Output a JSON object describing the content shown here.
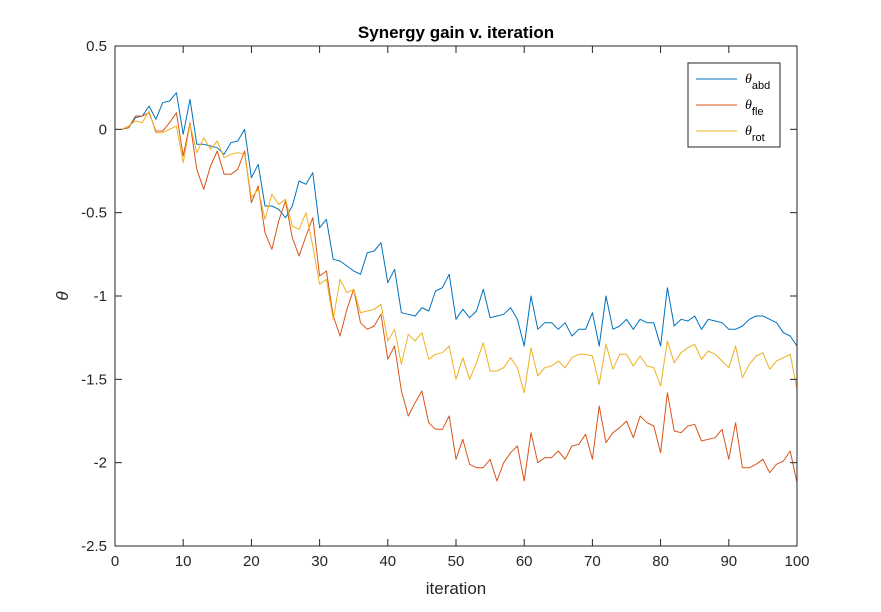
{
  "chart_data": {
    "type": "line",
    "title": "Synergy gain v. iteration",
    "xlabel": "iteration",
    "ylabel": "θ",
    "xlim": [
      0,
      100
    ],
    "ylim": [
      -2.5,
      0.5
    ],
    "xticks": [
      0,
      10,
      20,
      30,
      40,
      50,
      60,
      70,
      80,
      90,
      100
    ],
    "xtick_labels": [
      "0",
      "10",
      "20",
      "30",
      "40",
      "50",
      "60",
      "70",
      "80",
      "90",
      "100"
    ],
    "yticks": [
      0.5,
      0,
      -0.5,
      -1,
      -1.5,
      -2,
      -2.5
    ],
    "ytick_labels": [
      "0.5",
      "0",
      "-0.5",
      "-1",
      "-1.5",
      "-2",
      "-2.5"
    ],
    "grid": false,
    "legend_position": "top-right",
    "series": [
      {
        "name": "abd",
        "legend_base": "θ",
        "legend_sub": "abd",
        "color": "#0072BD",
        "x": [
          1,
          2,
          3,
          4,
          5,
          6,
          7,
          8,
          9,
          10,
          11,
          12,
          13,
          14,
          15,
          16,
          17,
          18,
          19,
          20,
          21,
          22,
          23,
          24,
          25,
          26,
          27,
          28,
          29,
          30,
          31,
          32,
          33,
          34,
          35,
          36,
          37,
          38,
          39,
          40,
          41,
          42,
          43,
          44,
          45,
          46,
          47,
          48,
          49,
          50,
          51,
          52,
          53,
          54,
          55,
          56,
          57,
          58,
          59,
          60,
          61,
          62,
          63,
          64,
          65,
          66,
          67,
          68,
          69,
          70,
          71,
          72,
          73,
          74,
          75,
          76,
          77,
          78,
          79,
          80,
          81,
          82,
          83,
          84,
          85,
          86,
          87,
          88,
          89,
          90,
          91,
          92,
          93,
          94,
          95,
          96,
          97,
          98,
          99,
          100
        ],
        "y": [
          0,
          0.01,
          0.07,
          0.08,
          0.14,
          0.06,
          0.16,
          0.17,
          0.22,
          -0.03,
          0.18,
          -0.09,
          -0.09,
          -0.1,
          -0.11,
          -0.15,
          -0.08,
          -0.07,
          0.0,
          -0.29,
          -0.21,
          -0.46,
          -0.46,
          -0.48,
          -0.53,
          -0.46,
          -0.31,
          -0.33,
          -0.26,
          -0.59,
          -0.54,
          -0.78,
          -0.79,
          -0.82,
          -0.85,
          -0.87,
          -0.74,
          -0.73,
          -0.68,
          -0.92,
          -0.84,
          -1.1,
          -1.11,
          -1.12,
          -1.07,
          -1.09,
          -0.97,
          -0.95,
          -0.87,
          -1.14,
          -1.08,
          -1.13,
          -1.09,
          -0.96,
          -1.13,
          -1.12,
          -1.11,
          -1.07,
          -1.14,
          -1.3,
          -1.0,
          -1.2,
          -1.16,
          -1.16,
          -1.2,
          -1.16,
          -1.24,
          -1.2,
          -1.2,
          -1.1,
          -1.3,
          -1.0,
          -1.2,
          -1.18,
          -1.14,
          -1.2,
          -1.14,
          -1.16,
          -1.16,
          -1.3,
          -0.95,
          -1.18,
          -1.14,
          -1.15,
          -1.12,
          -1.2,
          -1.14,
          -1.15,
          -1.16,
          -1.2,
          -1.2,
          -1.18,
          -1.14,
          -1.12,
          -1.12,
          -1.14,
          -1.16,
          -1.22,
          -1.24,
          -1.3
        ]
      },
      {
        "name": "fle",
        "legend_base": "θ",
        "legend_sub": "fle",
        "color": "#D95319",
        "x": [
          1,
          2,
          3,
          4,
          5,
          6,
          7,
          8,
          9,
          10,
          11,
          12,
          13,
          14,
          15,
          16,
          17,
          18,
          19,
          20,
          21,
          22,
          23,
          24,
          25,
          26,
          27,
          28,
          29,
          30,
          31,
          32,
          33,
          34,
          35,
          36,
          37,
          38,
          39,
          40,
          41,
          42,
          43,
          44,
          45,
          46,
          47,
          48,
          49,
          50,
          51,
          52,
          53,
          54,
          55,
          56,
          57,
          58,
          59,
          60,
          61,
          62,
          63,
          64,
          65,
          66,
          67,
          68,
          69,
          70,
          71,
          72,
          73,
          74,
          75,
          76,
          77,
          78,
          79,
          80,
          81,
          82,
          83,
          84,
          85,
          86,
          87,
          88,
          89,
          90,
          91,
          92,
          93,
          94,
          95,
          96,
          97,
          98,
          99,
          100
        ],
        "y": [
          0,
          0.01,
          0.08,
          0.08,
          0.1,
          -0.01,
          -0.01,
          0.04,
          0.1,
          -0.16,
          0.04,
          -0.24,
          -0.36,
          -0.22,
          -0.13,
          -0.27,
          -0.27,
          -0.24,
          -0.13,
          -0.44,
          -0.34,
          -0.62,
          -0.72,
          -0.55,
          -0.43,
          -0.65,
          -0.76,
          -0.64,
          -0.53,
          -0.88,
          -0.85,
          -1.12,
          -1.24,
          -1.08,
          -0.96,
          -1.16,
          -1.2,
          -1.18,
          -1.11,
          -1.38,
          -1.3,
          -1.57,
          -1.72,
          -1.64,
          -1.57,
          -1.76,
          -1.8,
          -1.8,
          -1.72,
          -1.98,
          -1.86,
          -2.01,
          -2.03,
          -2.03,
          -1.98,
          -2.11,
          -2.0,
          -1.94,
          -1.9,
          -2.11,
          -1.82,
          -2.0,
          -1.97,
          -1.97,
          -1.93,
          -1.98,
          -1.9,
          -1.89,
          -1.83,
          -1.98,
          -1.66,
          -1.88,
          -1.82,
          -1.79,
          -1.75,
          -1.85,
          -1.72,
          -1.76,
          -1.78,
          -1.94,
          -1.58,
          -1.81,
          -1.82,
          -1.78,
          -1.77,
          -1.87,
          -1.86,
          -1.85,
          -1.8,
          -1.98,
          -1.76,
          -2.03,
          -2.03,
          -2.01,
          -1.98,
          -2.06,
          -2.01,
          -1.99,
          -1.93,
          -2.12
        ]
      },
      {
        "name": "rot",
        "legend_base": "θ",
        "legend_sub": "rot",
        "color": "#EDB120",
        "x": [
          1,
          2,
          3,
          4,
          5,
          6,
          7,
          8,
          9,
          10,
          11,
          12,
          13,
          14,
          15,
          16,
          17,
          18,
          19,
          20,
          21,
          22,
          23,
          24,
          25,
          26,
          27,
          28,
          29,
          30,
          31,
          32,
          33,
          34,
          35,
          36,
          37,
          38,
          39,
          40,
          41,
          42,
          43,
          44,
          45,
          46,
          47,
          48,
          49,
          50,
          51,
          52,
          53,
          54,
          55,
          56,
          57,
          58,
          59,
          60,
          61,
          62,
          63,
          64,
          65,
          66,
          67,
          68,
          69,
          70,
          71,
          72,
          73,
          74,
          75,
          76,
          77,
          78,
          79,
          80,
          81,
          82,
          83,
          84,
          85,
          86,
          87,
          88,
          89,
          90,
          91,
          92,
          93,
          94,
          95,
          96,
          97,
          98,
          99,
          100
        ],
        "y": [
          0,
          0.02,
          0.05,
          0.04,
          0.11,
          -0.02,
          -0.02,
          0.0,
          0.02,
          -0.2,
          0.03,
          -0.14,
          -0.05,
          -0.12,
          -0.07,
          -0.17,
          -0.15,
          -0.14,
          -0.15,
          -0.41,
          -0.36,
          -0.54,
          -0.39,
          -0.45,
          -0.42,
          -0.58,
          -0.6,
          -0.5,
          -0.7,
          -0.93,
          -0.9,
          -1.14,
          -0.9,
          -0.98,
          -0.96,
          -1.1,
          -1.09,
          -1.08,
          -1.05,
          -1.27,
          -1.2,
          -1.41,
          -1.23,
          -1.27,
          -1.22,
          -1.38,
          -1.35,
          -1.34,
          -1.3,
          -1.5,
          -1.37,
          -1.5,
          -1.4,
          -1.28,
          -1.45,
          -1.45,
          -1.43,
          -1.37,
          -1.43,
          -1.58,
          -1.31,
          -1.48,
          -1.43,
          -1.42,
          -1.39,
          -1.43,
          -1.37,
          -1.35,
          -1.35,
          -1.36,
          -1.53,
          -1.29,
          -1.44,
          -1.35,
          -1.35,
          -1.42,
          -1.36,
          -1.42,
          -1.43,
          -1.54,
          -1.27,
          -1.4,
          -1.34,
          -1.31,
          -1.29,
          -1.38,
          -1.33,
          -1.35,
          -1.39,
          -1.43,
          -1.3,
          -1.49,
          -1.41,
          -1.36,
          -1.34,
          -1.44,
          -1.39,
          -1.37,
          -1.35,
          -1.56
        ]
      }
    ]
  }
}
